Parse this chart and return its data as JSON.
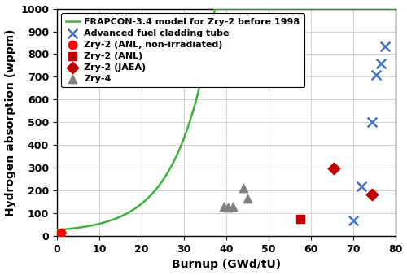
{
  "title": "",
  "xlabel": "Burnup (GWd/tU)",
  "ylabel": "Hydrogen absorption (wppm)",
  "xlim": [
    0,
    80
  ],
  "ylim": [
    0,
    1000
  ],
  "xticks": [
    0,
    10,
    20,
    30,
    40,
    50,
    60,
    70,
    80
  ],
  "yticks": [
    0,
    100,
    200,
    300,
    400,
    500,
    600,
    700,
    800,
    900,
    1000
  ],
  "frapcon_color": "#3cb43c",
  "frapcon_label": "FRAPCON-3.4 model for Zry-2 before 1998",
  "frapcon_A": 18.0,
  "frapcon_B": 0.115,
  "frapcon_C": 7.0,
  "adv_fuel": {
    "x": [
      70,
      72,
      74.5,
      75.5,
      76.5,
      77.5
    ],
    "y": [
      70,
      220,
      500,
      710,
      760,
      835
    ],
    "color": "#4472c4",
    "label": "Advanced fuel cladding tube"
  },
  "zry2_anl_non": {
    "x": [
      1.0
    ],
    "y": [
      15
    ],
    "color": "#ff0000",
    "label": "Zry-2 (ANL, non-irradiated)"
  },
  "zry2_anl": {
    "x": [
      57.5
    ],
    "y": [
      75
    ],
    "color": "#c00000",
    "label": "Zry-2 (ANL)"
  },
  "zry2_jaea": {
    "x": [
      65.5,
      74.5
    ],
    "y": [
      298,
      182
    ],
    "color": "#c00000",
    "label": "Zry-2 (JAEA)"
  },
  "zry4": {
    "x": [
      39.5,
      40.5,
      41.5,
      44.0,
      45.0
    ],
    "y": [
      130,
      125,
      128,
      210,
      165
    ],
    "color": "#808080",
    "label": "Zry-4"
  },
  "background_color": "#ffffff",
  "grid_color": "#cccccc",
  "legend_fontsize": 8,
  "axis_label_fontsize": 10,
  "tick_fontsize": 9
}
